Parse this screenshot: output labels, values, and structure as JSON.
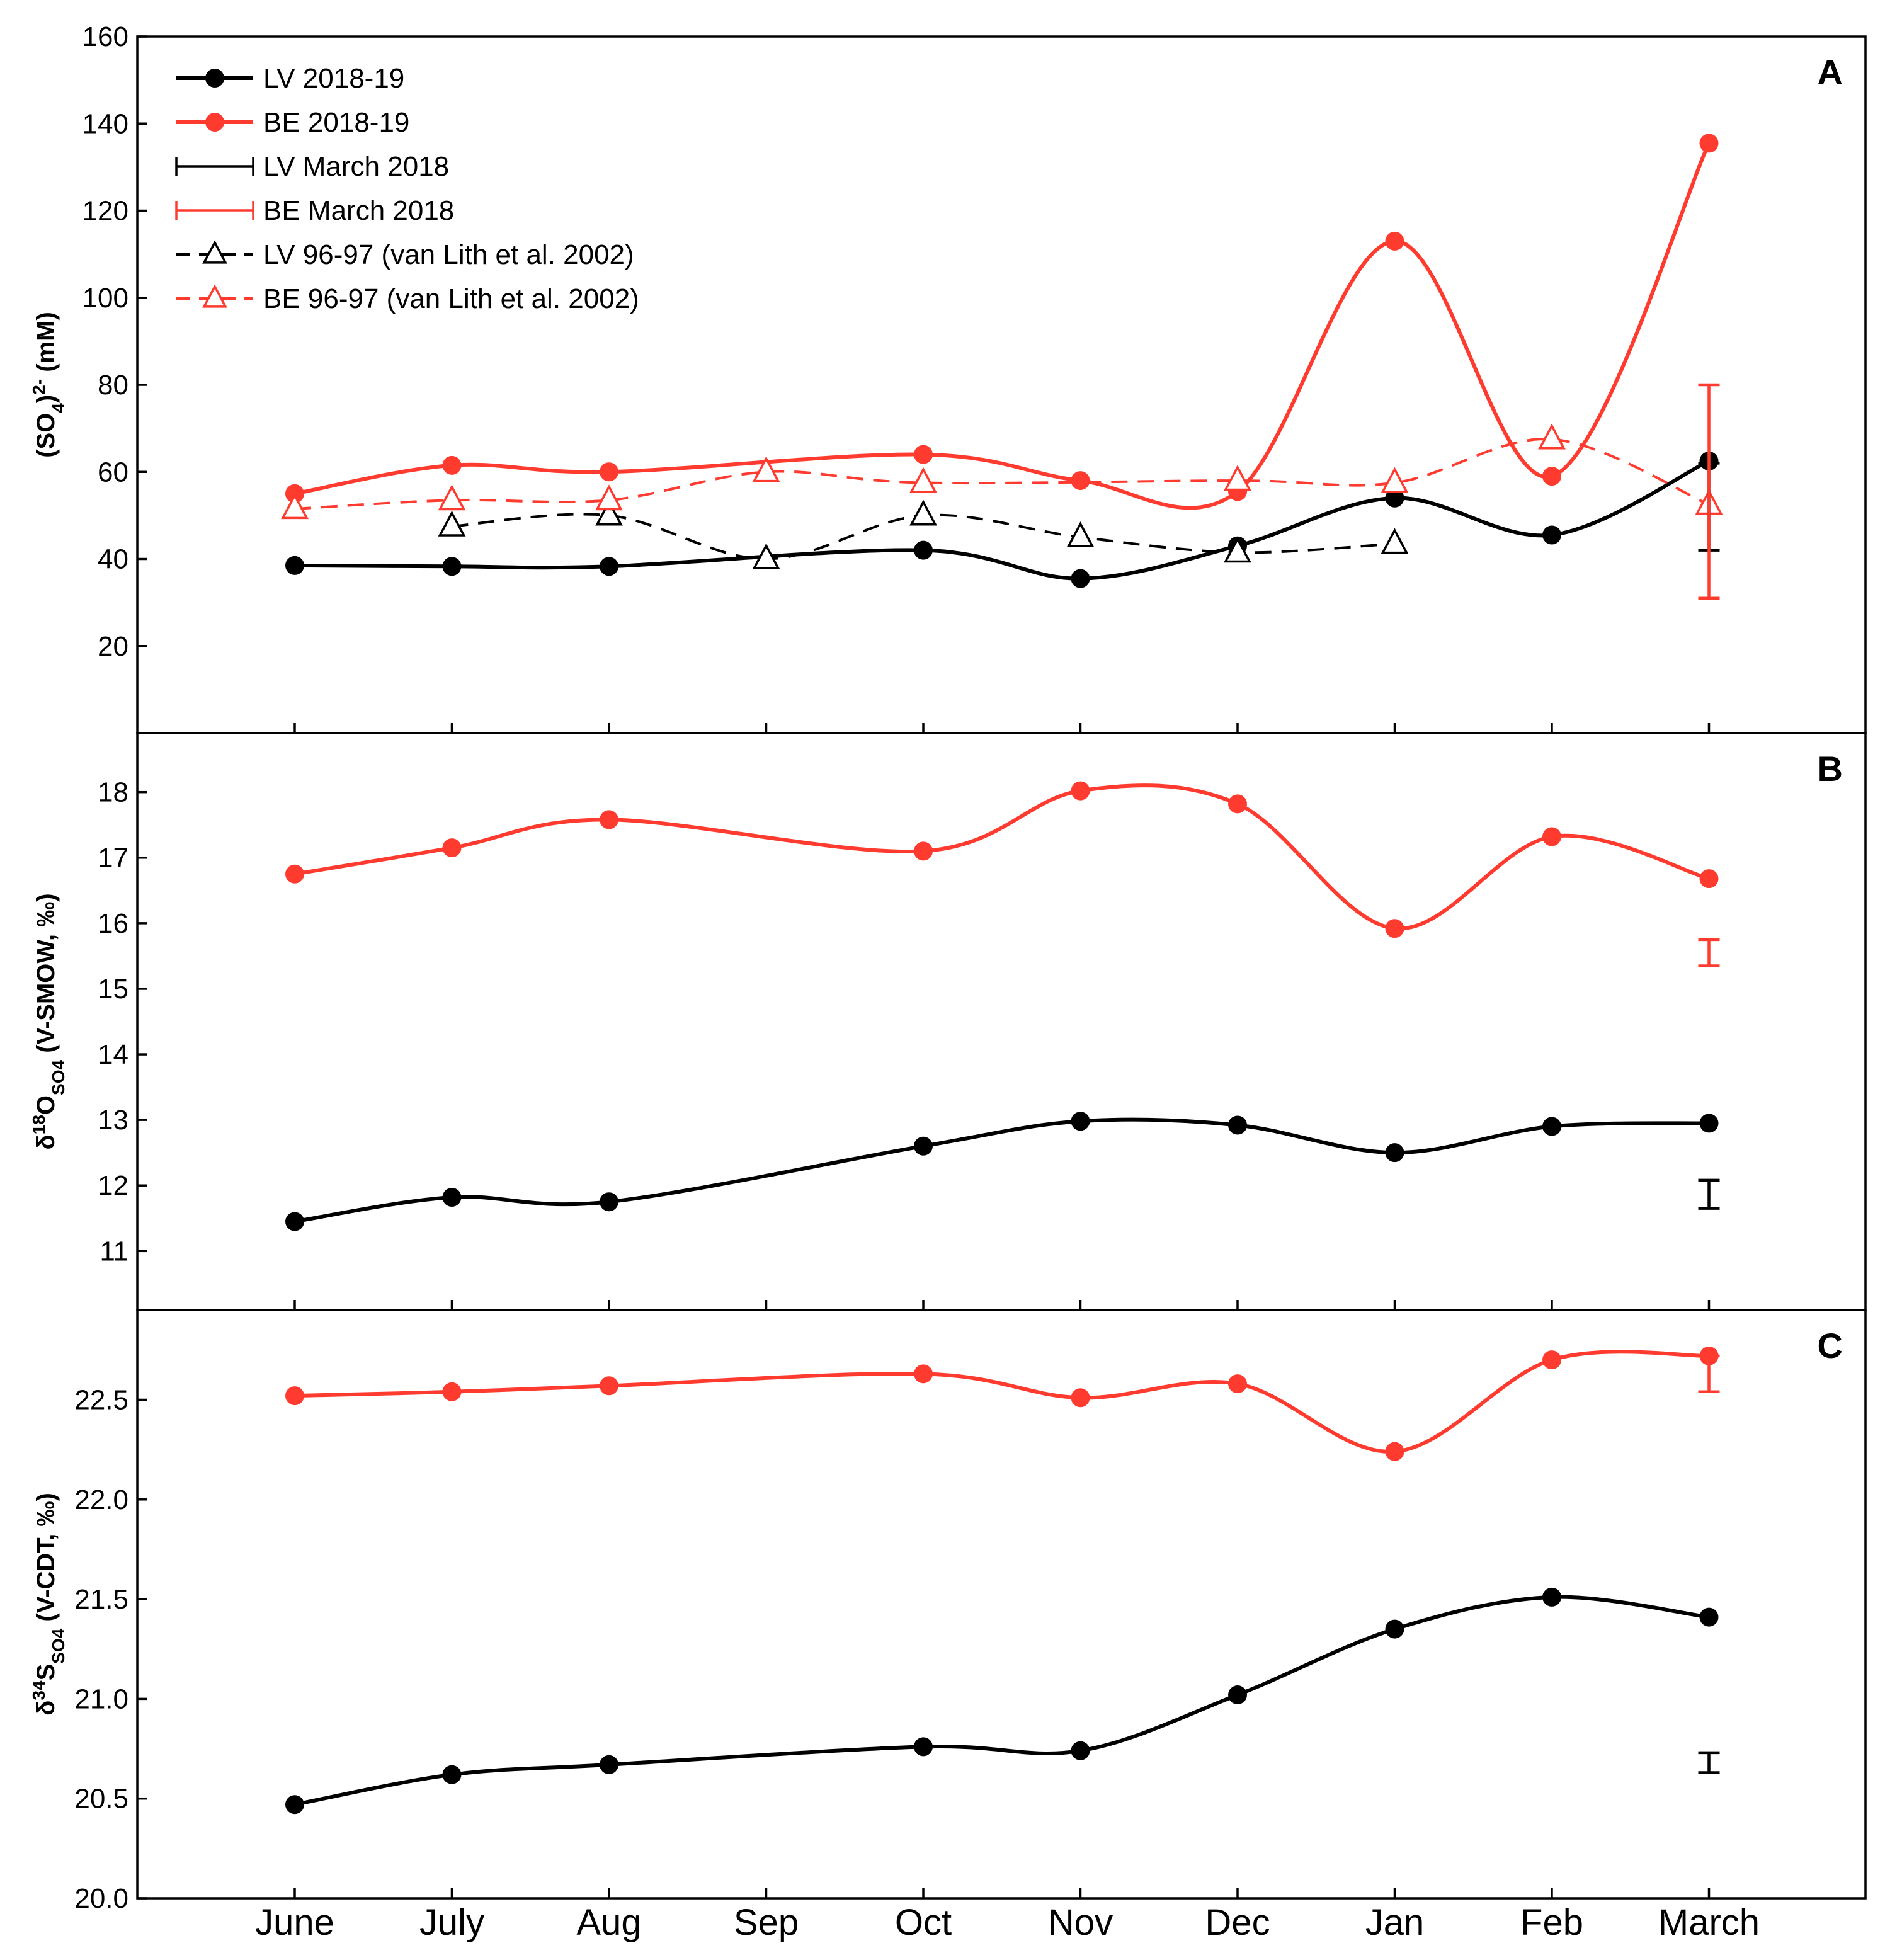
{
  "colors": {
    "lv": "#000000",
    "be": "#ff3b30"
  },
  "chart_data": [
    {
      "panel": "A",
      "type": "line",
      "ylabel": "(SO4)2- (mM)",
      "ylabel_parts": {
        "main": "(SO",
        "sub": "4",
        "close": ")",
        "sup": "2-",
        "unit": " (mM)"
      },
      "ylim": [
        0,
        160
      ],
      "yticks": [
        20,
        40,
        60,
        80,
        100,
        120,
        140,
        160
      ],
      "series": [
        {
          "name": "LV 2018-19",
          "color": "#000000",
          "marker": "circle",
          "style": "solid",
          "x": [
            "June",
            "July",
            "Aug",
            "Oct",
            "Nov",
            "Dec",
            "Jan",
            "Feb",
            "March"
          ],
          "y": [
            38.5,
            38.3,
            38.3,
            42,
            35.5,
            43,
            54,
            45.5,
            62.5
          ]
        },
        {
          "name": "BE 2018-19",
          "color": "#ff3b30",
          "marker": "circle",
          "style": "solid",
          "x": [
            "June",
            "July",
            "Aug",
            "Oct",
            "Nov",
            "Dec",
            "Jan",
            "Feb",
            "March"
          ],
          "y": [
            55,
            61.5,
            60,
            64,
            58,
            55.5,
            113,
            59,
            135.5
          ]
        },
        {
          "name": "LV 96-97 (van Lith et al. 2002)",
          "color": "#000000",
          "marker": "triangle",
          "style": "dashed",
          "x": [
            "July",
            "Aug",
            "Sep",
            "Oct",
            "Nov",
            "Dec",
            "Jan"
          ],
          "y": [
            47.5,
            50,
            40,
            50,
            45,
            41.5,
            43.5
          ]
        },
        {
          "name": "BE 96-97 (van Lith et al. 2002)",
          "color": "#ff3b30",
          "marker": "triangle",
          "style": "dashed",
          "x": [
            "June",
            "July",
            "Aug",
            "Sep",
            "Oct",
            "Dec",
            "Jan",
            "Feb",
            "March"
          ],
          "y": [
            51.5,
            53.5,
            53.5,
            60,
            57.5,
            58,
            57.5,
            67.5,
            52.5
          ]
        }
      ],
      "errorbars": [
        {
          "name": "LV March 2018",
          "color": "#000000",
          "x": "March",
          "low": 42,
          "high": 62
        },
        {
          "name": "BE March 2018",
          "color": "#ff3b30",
          "x": "March",
          "low": 31,
          "high": 80
        }
      ]
    },
    {
      "panel": "B",
      "type": "line",
      "ylabel": "δ18OSO4 (V-SMOW, ‰)",
      "ylabel_parts": {
        "main": "δ",
        "sup": "18",
        "mid": "O",
        "sub": "SO4",
        "unit": " (V-SMOW, ‰)"
      },
      "ylim": [
        10.1,
        18.9
      ],
      "yticks": [
        11,
        12,
        13,
        14,
        15,
        16,
        17,
        18
      ],
      "series": [
        {
          "name": "BE 2018-19",
          "color": "#ff3b30",
          "marker": "circle",
          "style": "solid",
          "x": [
            "June",
            "July",
            "Aug",
            "Oct",
            "Nov",
            "Dec",
            "Jan",
            "Feb",
            "March"
          ],
          "y": [
            16.75,
            17.15,
            17.58,
            17.1,
            18.02,
            17.82,
            15.92,
            17.32,
            16.68
          ]
        },
        {
          "name": "LV 2018-19",
          "color": "#000000",
          "marker": "circle",
          "style": "solid",
          "x": [
            "June",
            "July",
            "Aug",
            "Oct",
            "Nov",
            "Dec",
            "Jan",
            "Feb",
            "March"
          ],
          "y": [
            11.45,
            11.82,
            11.75,
            12.6,
            12.98,
            12.92,
            12.5,
            12.9,
            12.95
          ]
        }
      ],
      "errorbars": [
        {
          "name": "BE March 2018",
          "color": "#ff3b30",
          "x": "March",
          "low": 15.35,
          "high": 15.75
        },
        {
          "name": "LV March 2018",
          "color": "#000000",
          "x": "March",
          "low": 11.65,
          "high": 12.08
        }
      ]
    },
    {
      "panel": "C",
      "type": "line",
      "ylabel": "δ34SSO4 (V-CDT, ‰)",
      "ylabel_parts": {
        "main": "δ",
        "sup": "34",
        "mid": "S",
        "sub": "SO4",
        "unit": " (V-CDT, ‰)"
      },
      "ylim": [
        20.0,
        22.95
      ],
      "yticks": [
        20.0,
        20.5,
        21.0,
        21.5,
        22.0,
        22.5
      ],
      "ytick_labels": [
        "20.0",
        "20.5",
        "21.0",
        "21.5",
        "22.0",
        "22.5"
      ],
      "series": [
        {
          "name": "BE 2018-19",
          "color": "#ff3b30",
          "marker": "circle",
          "style": "solid",
          "x": [
            "June",
            "July",
            "Aug",
            "Oct",
            "Nov",
            "Dec",
            "Jan",
            "Feb",
            "March"
          ],
          "y": [
            22.52,
            22.54,
            22.57,
            22.63,
            22.51,
            22.58,
            22.24,
            22.7,
            22.72
          ]
        },
        {
          "name": "LV 2018-19",
          "color": "#000000",
          "marker": "circle",
          "style": "solid",
          "x": [
            "June",
            "July",
            "Aug",
            "Oct",
            "Nov",
            "Dec",
            "Jan",
            "Feb",
            "March"
          ],
          "y": [
            20.47,
            20.62,
            20.67,
            20.76,
            20.74,
            21.02,
            21.35,
            21.51,
            21.41
          ]
        }
      ],
      "errorbars": [
        {
          "name": "BE March 2018",
          "color": "#ff3b30",
          "x": "March",
          "low": 22.54,
          "high": 22.72
        },
        {
          "name": "LV March 2018",
          "color": "#000000",
          "x": "March",
          "low": 20.63,
          "high": 20.73
        }
      ]
    }
  ],
  "x_categories": [
    "June",
    "July",
    "Aug",
    "Sep",
    "Oct",
    "Nov",
    "Dec",
    "Jan",
    "Feb",
    "March"
  ],
  "legend": [
    {
      "label": "LV 2018-19",
      "color": "#000000",
      "kind": "line-circle"
    },
    {
      "label": "BE 2018-19",
      "color": "#ff3b30",
      "kind": "line-circle"
    },
    {
      "label": "LV March 2018",
      "color": "#000000",
      "kind": "errorbar"
    },
    {
      "label": "BE March 2018",
      "color": "#ff3b30",
      "kind": "errorbar"
    },
    {
      "label": "LV 96-97 (van Lith et al. 2002)",
      "color": "#000000",
      "kind": "dashed-triangle"
    },
    {
      "label": "BE 96-97 (van Lith et al. 2002)",
      "color": "#ff3b30",
      "kind": "dashed-triangle"
    }
  ]
}
